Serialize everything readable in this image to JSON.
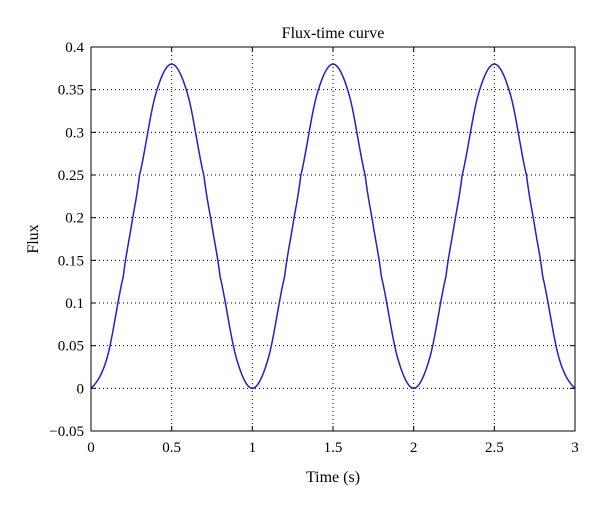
{
  "chart_data": {
    "type": "line",
    "title": "Flux-time curve",
    "xlabel": "Time (s)",
    "ylabel": "Flux",
    "xlim": [
      0,
      3
    ],
    "ylim": [
      -0.05,
      0.4
    ],
    "x_ticks": [
      "0",
      "0.5",
      "1",
      "1.5",
      "2",
      "2.5",
      "3"
    ],
    "y_ticks": [
      "−0.05",
      "0",
      "0.05",
      "0.1",
      "0.15",
      "0.2",
      "0.25",
      "0.3",
      "0.35",
      "0.4"
    ],
    "grid": true,
    "grid_style": "dotted",
    "series": [
      {
        "color": "#1f1fd6",
        "x": [
          0,
          0.1,
          0.2,
          0.25,
          0.3,
          0.4,
          0.5,
          0.6,
          0.7,
          0.75,
          0.8,
          0.9,
          1.0,
          1.1,
          1.2,
          1.25,
          1.3,
          1.4,
          1.5,
          1.6,
          1.7,
          1.75,
          1.8,
          1.9,
          2.0,
          2.1,
          2.2,
          2.25,
          2.3,
          2.4,
          2.5,
          2.6,
          2.7,
          2.75,
          2.8,
          2.9,
          3.0
        ],
        "y": [
          0,
          0.036,
          0.131,
          0.19,
          0.249,
          0.344,
          0.38,
          0.344,
          0.249,
          0.19,
          0.131,
          0.036,
          0,
          0.036,
          0.131,
          0.19,
          0.249,
          0.344,
          0.38,
          0.344,
          0.249,
          0.19,
          0.131,
          0.036,
          0,
          0.036,
          0.131,
          0.19,
          0.249,
          0.344,
          0.38,
          0.344,
          0.249,
          0.19,
          0.131,
          0.036,
          0
        ]
      }
    ]
  }
}
